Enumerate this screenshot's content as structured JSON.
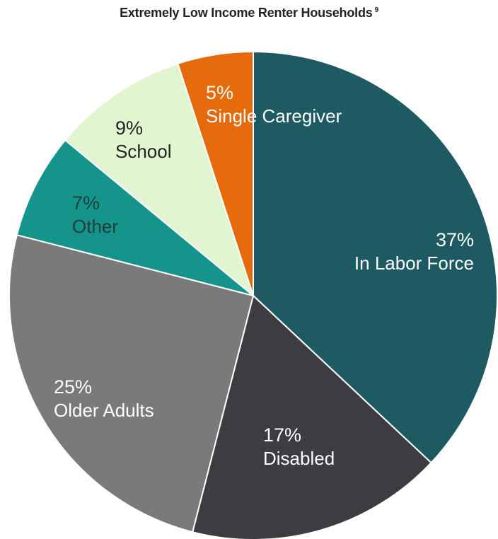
{
  "chart_data": {
    "type": "pie",
    "title": "Extremely Low Income Renter Households",
    "title_footnote": "9",
    "slices": [
      {
        "label": "In Labor Force",
        "pct_label": "37%",
        "value": 37,
        "color": "#1d5a62",
        "text_color": "#ffffff"
      },
      {
        "label": "Disabled",
        "pct_label": "17%",
        "value": 17,
        "color": "#3d3c41",
        "text_color": "#ffffff"
      },
      {
        "label": "Older Adults",
        "pct_label": "25%",
        "value": 25,
        "color": "#7a7a7a",
        "text_color": "#ffffff"
      },
      {
        "label": "Other",
        "pct_label": "7%",
        "value": 7,
        "color": "#14948b",
        "text_color": "#1f3b3b"
      },
      {
        "label": "School",
        "pct_label": "9%",
        "value": 9,
        "color": "#e1f5d1",
        "text_color": "#222222"
      },
      {
        "label": "Single Caregiver",
        "pct_label": "5%",
        "value": 5,
        "color": "#e56a0c",
        "text_color": "#ffffff"
      }
    ]
  }
}
